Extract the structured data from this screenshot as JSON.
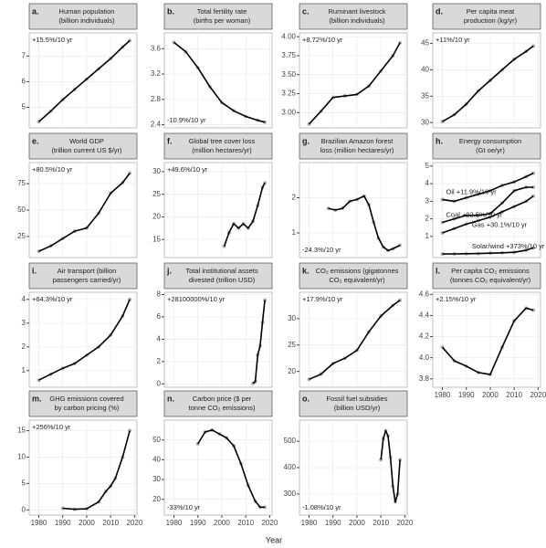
{
  "x_axis": {
    "xlabel": "Year",
    "xlim": [
      1976,
      2021
    ],
    "xticks": [
      1980,
      1990,
      2000,
      2010,
      2020
    ]
  },
  "chart_data": [
    {
      "type": "line",
      "label": "a.",
      "title": [
        "Human population",
        "(billion individuals)"
      ],
      "annotation": "+15.5%/10 yr",
      "annotation_pos": "top-left",
      "x": [
        1980,
        1985,
        1990,
        1995,
        2000,
        2005,
        2010,
        2015,
        2018
      ],
      "ylim": [
        4.2,
        7.9
      ],
      "yticks": [
        5,
        6,
        7
      ],
      "series": [
        {
          "color": "#000000",
          "point_color": "#b3b3b3",
          "values": [
            4.44,
            4.85,
            5.3,
            5.7,
            6.1,
            6.5,
            6.9,
            7.35,
            7.6
          ]
        }
      ]
    },
    {
      "type": "line",
      "label": "b.",
      "title": [
        "Total fertility rate",
        "(births per woman)"
      ],
      "annotation": "-10.9%/10 yr",
      "annotation_pos": "bottom-left",
      "x": [
        1980,
        1985,
        1990,
        1995,
        2000,
        2005,
        2010,
        2015,
        2018
      ],
      "ylim": [
        2.35,
        3.85
      ],
      "yticks": [
        2.4,
        2.8,
        3.2,
        3.6
      ],
      "series": [
        {
          "color": "#000000",
          "point_color": "#b3b3b3",
          "values": [
            3.7,
            3.55,
            3.3,
            3.0,
            2.75,
            2.62,
            2.53,
            2.47,
            2.44
          ]
        }
      ]
    },
    {
      "type": "line",
      "label": "c.",
      "title": [
        "Ruminant livestock",
        "(billion individuals)"
      ],
      "annotation": "+8.72%/10 yr",
      "annotation_pos": "top-left",
      "x": [
        1980,
        1985,
        1990,
        1995,
        2000,
        2005,
        2010,
        2015,
        2018
      ],
      "ylim": [
        2.8,
        4.05
      ],
      "yticks": [
        {
          "value": 3,
          "label": "3.00"
        },
        {
          "value": 3.25,
          "label": "3.25"
        },
        {
          "value": 3.5,
          "label": "3.50"
        },
        {
          "value": 3.75,
          "label": "3.75"
        },
        {
          "value": 4,
          "label": "4.00"
        }
      ],
      "series": [
        {
          "color": "#000000",
          "point_color": "#b3b3b3",
          "values": [
            2.85,
            3.02,
            3.2,
            3.22,
            3.24,
            3.35,
            3.55,
            3.75,
            3.92
          ]
        }
      ]
    },
    {
      "type": "line",
      "label": "d.",
      "title": [
        "Per capita meat",
        "production (kg/yr)"
      ],
      "annotation": "+11%/10 yr",
      "annotation_pos": "top-left",
      "x": [
        1980,
        1985,
        1990,
        1995,
        2000,
        2005,
        2010,
        2015,
        2018
      ],
      "ylim": [
        29,
        47
      ],
      "yticks": [
        30,
        35,
        40,
        45
      ],
      "series": [
        {
          "color": "#000000",
          "point_color": "#b3b3b3",
          "values": [
            30.2,
            31.5,
            33.5,
            36,
            38,
            40,
            42,
            43.5,
            44.5
          ]
        }
      ]
    },
    {
      "type": "line",
      "label": "e.",
      "title": [
        "World GDP",
        "(trillion current US $/yr)"
      ],
      "annotation": "+80.5%/10 yr",
      "annotation_pos": "top-left",
      "x": [
        1980,
        1985,
        1990,
        1995,
        2000,
        2005,
        2010,
        2015,
        2018
      ],
      "ylim": [
        5,
        95
      ],
      "yticks": [
        25,
        50,
        75
      ],
      "series": [
        {
          "color": "#000000",
          "point_color": "#b3b3b3",
          "values": [
            11,
            16,
            23,
            30,
            33,
            47,
            66,
            76,
            85
          ]
        }
      ]
    },
    {
      "type": "line",
      "label": "f.",
      "title": [
        "Global tree cover loss",
        "(million hectares/yr)"
      ],
      "annotation": "+49.6%/10 yr",
      "annotation_pos": "top-left",
      "x": [
        2001,
        2003,
        2005,
        2007,
        2009,
        2011,
        2013,
        2015,
        2017,
        2018
      ],
      "ylim": [
        11,
        32
      ],
      "yticks": [
        15,
        20,
        25,
        30
      ],
      "series": [
        {
          "color": "#000000",
          "point_color": "#b3b3b3",
          "values": [
            13.5,
            16.5,
            18.5,
            17.5,
            18.5,
            17.5,
            19,
            22.5,
            26.5,
            27.5
          ]
        }
      ]
    },
    {
      "type": "line",
      "label": "g.",
      "title": [
        "Brazilian Amazon forest",
        "loss (million hectares/yr)"
      ],
      "annotation": "-24.3%/10 yr",
      "annotation_pos": "bottom-left",
      "x": [
        1988,
        1991,
        1994,
        1997,
        2000,
        2003,
        2005,
        2007,
        2009,
        2011,
        2013,
        2015,
        2018
      ],
      "ylim": [
        0.3,
        3.0
      ],
      "yticks": [
        1,
        2
      ],
      "series": [
        {
          "color": "#000000",
          "point_color": "#b3b3b3",
          "values": [
            1.7,
            1.65,
            1.7,
            1.9,
            1.95,
            2.05,
            1.8,
            1.3,
            0.85,
            0.6,
            0.5,
            0.55,
            0.65
          ]
        }
      ]
    },
    {
      "type": "line",
      "label": "h.",
      "title": [
        "Energy consumption",
        "(Gt oe/yr)"
      ],
      "x": [
        1980,
        1985,
        1990,
        1995,
        2000,
        2005,
        2010,
        2015,
        2018
      ],
      "ylim": [
        -0.2,
        5.2
      ],
      "yticks": [
        1,
        2,
        3,
        4,
        5
      ],
      "series": [
        {
          "name": "Oil +11.9%/10 yr",
          "color": "#000000",
          "point_color": "#b3b3b3",
          "values": [
            3.1,
            3.0,
            3.2,
            3.4,
            3.6,
            3.9,
            4.1,
            4.4,
            4.6
          ]
        },
        {
          "name": "Coal +22.5%/10 yr",
          "color": "#000000",
          "point_color": "#b3b3b3",
          "values": [
            1.8,
            2.0,
            2.2,
            2.2,
            2.3,
            2.9,
            3.6,
            3.8,
            3.8
          ]
        },
        {
          "name": "Gas +30.1%/10 yr",
          "color": "#000000",
          "point_color": "#b3b3b3",
          "values": [
            1.2,
            1.45,
            1.7,
            1.9,
            2.1,
            2.4,
            2.7,
            3.0,
            3.3
          ]
        },
        {
          "name": "Solar/wind +373%/10 yr",
          "color": "#000000",
          "point_color": "#b3b3b3",
          "values": [
            0,
            0.01,
            0.02,
            0.03,
            0.05,
            0.07,
            0.1,
            0.22,
            0.35
          ]
        }
      ]
    },
    {
      "type": "line",
      "label": "i.",
      "title": [
        "Air transport (billion",
        "passengers carried/yr)"
      ],
      "annotation": "+64.3%/10 yr",
      "annotation_pos": "top-left",
      "x": [
        1980,
        1985,
        1990,
        1995,
        2000,
        2005,
        2010,
        2015,
        2018
      ],
      "ylim": [
        0.3,
        4.3
      ],
      "yticks": [
        1,
        2,
        3,
        4
      ],
      "series": [
        {
          "color": "#000000",
          "point_color": "#b3b3b3",
          "values": [
            0.6,
            0.85,
            1.1,
            1.3,
            1.65,
            2.0,
            2.5,
            3.3,
            4.0
          ]
        }
      ]
    },
    {
      "type": "line",
      "label": "j.",
      "title": [
        "Total institutional assets",
        "divested (trillion USD)"
      ],
      "annotation": "+28100000%/10 yr",
      "annotation_pos": "top-left",
      "x": [
        2013,
        2014,
        2015,
        2016,
        2017,
        2018
      ],
      "ylim": [
        -0.3,
        8.2
      ],
      "yticks": [
        0,
        2,
        4,
        6,
        8
      ],
      "series": [
        {
          "color": "#000000",
          "point_color": "#b3b3b3",
          "values": [
            0.05,
            0.2,
            2.6,
            3.4,
            5.5,
            7.5
          ]
        }
      ]
    },
    {
      "type": "line",
      "label": "k.",
      "title": [
        "CO₂ emissions (gigatonnes",
        "CO₂ equivalent/yr)"
      ],
      "annotation": "+17.9%/10 yr",
      "annotation_pos": "top-left",
      "x": [
        1980,
        1985,
        1990,
        1995,
        2000,
        2005,
        2010,
        2015,
        2018
      ],
      "ylim": [
        17,
        35
      ],
      "yticks": [
        20,
        25,
        30
      ],
      "series": [
        {
          "color": "#000000",
          "point_color": "#b3b3b3",
          "values": [
            18.5,
            19.5,
            21.5,
            22.5,
            24,
            27.5,
            30.5,
            32.5,
            33.5
          ]
        }
      ]
    },
    {
      "type": "line",
      "label": "l.",
      "title": [
        "Per capita CO₂ emissions",
        "(tonnes CO₂ equivalent/yr)"
      ],
      "annotation": "+2.15%/10 yr",
      "annotation_pos": "top-left",
      "x": [
        1980,
        1985,
        1990,
        1995,
        2000,
        2005,
        2010,
        2015,
        2018
      ],
      "ylim": [
        3.72,
        4.62
      ],
      "yticks": [
        3.8,
        {
          "value": 4,
          "label": "4.0"
        },
        4.2,
        4.4,
        4.6
      ],
      "series": [
        {
          "color": "#000000",
          "point_color": "#b3b3b3",
          "values": [
            4.1,
            3.97,
            3.92,
            3.86,
            3.84,
            4.1,
            4.35,
            4.47,
            4.45
          ]
        }
      ]
    },
    {
      "type": "line",
      "label": "m.",
      "title": [
        "GHG emissions covered",
        "by carbon pricing (%)"
      ],
      "annotation": "+256%/10 yr",
      "annotation_pos": "top-left",
      "x": [
        1990,
        1995,
        2000,
        2005,
        2008,
        2010,
        2012,
        2015,
        2018
      ],
      "ylim": [
        -1,
        17
      ],
      "yticks": [
        0,
        5,
        10,
        15
      ],
      "series": [
        {
          "color": "#000000",
          "point_color": "#b3b3b3",
          "values": [
            0.3,
            0.1,
            0.2,
            1.5,
            3.5,
            4.5,
            6,
            10,
            15
          ]
        }
      ]
    },
    {
      "type": "line",
      "label": "n.",
      "title": [
        "Carbon price ($ per",
        "tonne CO₂ emissions)"
      ],
      "annotation": "-33%/10 yr",
      "annotation_pos": "bottom-left",
      "x": [
        1990,
        1993,
        1996,
        1999,
        2002,
        2005,
        2008,
        2011,
        2014,
        2016,
        2018
      ],
      "ylim": [
        12,
        60
      ],
      "yticks": [
        20,
        30,
        40,
        50
      ],
      "series": [
        {
          "color": "#000000",
          "point_color": "#b3b3b3",
          "values": [
            48,
            54,
            55,
            53,
            51,
            47,
            38,
            27,
            19,
            16,
            16
          ]
        }
      ]
    },
    {
      "type": "line",
      "label": "o.",
      "title": [
        "Fossil fuel subsidies",
        "(billion USD/yr)"
      ],
      "annotation": "-1.08%/10 yr",
      "annotation_pos": "bottom-left",
      "x": [
        2010,
        2011,
        2012,
        2013,
        2014,
        2015,
        2016,
        2017,
        2018
      ],
      "ylim": [
        220,
        580
      ],
      "yticks": [
        300,
        400,
        500
      ],
      "series": [
        {
          "color": "#000000",
          "point_color": "#b3b3b3",
          "values": [
            430,
            510,
            540,
            520,
            440,
            330,
            270,
            300,
            430
          ]
        }
      ]
    }
  ]
}
